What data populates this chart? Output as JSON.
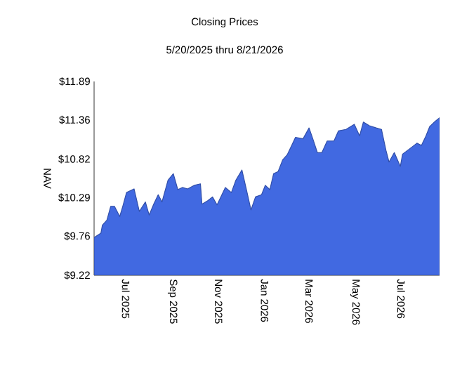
{
  "chart_data": {
    "type": "area",
    "title": "Closing Prices",
    "subtitle": "5/20/2025 thru 8/21/2026",
    "ylabel": "NAV",
    "x": [
      "2025-05-20",
      "2025-05-29",
      "2025-05-31",
      "2025-06-06",
      "2025-06-11",
      "2025-06-16",
      "2025-06-23",
      "2025-06-27",
      "2025-07-02",
      "2025-07-12",
      "2025-07-19",
      "2025-07-27",
      "2025-08-01",
      "2025-08-07",
      "2025-08-13",
      "2025-08-18",
      "2025-08-26",
      "2025-09-02",
      "2025-09-08",
      "2025-09-14",
      "2025-09-21",
      "2025-09-30",
      "2025-10-08",
      "2025-10-10",
      "2025-10-18",
      "2025-10-24",
      "2025-10-30",
      "2025-11-10",
      "2025-11-18",
      "2025-11-24",
      "2025-12-02",
      "2025-12-08",
      "2025-12-14",
      "2025-12-20",
      "2025-12-28",
      "2026-01-02",
      "2026-01-08",
      "2026-01-13",
      "2026-01-19",
      "2026-01-25",
      "2026-01-31",
      "2026-02-06",
      "2026-02-11",
      "2026-02-21",
      "2026-03-01",
      "2026-03-06",
      "2026-03-12",
      "2026-03-18",
      "2026-03-25",
      "2026-04-03",
      "2026-04-09",
      "2026-04-19",
      "2026-04-30",
      "2026-05-07",
      "2026-05-12",
      "2026-05-20",
      "2026-05-29",
      "2026-06-05",
      "2026-06-11",
      "2026-06-15",
      "2026-06-22",
      "2026-06-30",
      "2026-07-03",
      "2026-07-12",
      "2026-07-22",
      "2026-07-28",
      "2026-08-03",
      "2026-08-08",
      "2026-08-15",
      "2026-08-21"
    ],
    "series": [
      {
        "color": "#4169e1",
        "values": [
          9.74,
          9.8,
          9.91,
          9.98,
          10.17,
          10.17,
          10.03,
          10.17,
          10.36,
          10.41,
          10.1,
          10.23,
          10.05,
          10.2,
          10.33,
          10.23,
          10.53,
          10.62,
          10.4,
          10.43,
          10.41,
          10.46,
          10.48,
          10.2,
          10.25,
          10.3,
          10.19,
          10.43,
          10.36,
          10.53,
          10.67,
          10.4,
          10.12,
          10.3,
          10.33,
          10.46,
          10.4,
          10.62,
          10.65,
          10.81,
          10.88,
          11.01,
          11.12,
          11.1,
          11.25,
          11.1,
          10.91,
          10.91,
          11.07,
          11.07,
          11.21,
          11.23,
          11.3,
          11.14,
          11.33,
          11.28,
          11.25,
          11.23,
          10.94,
          10.78,
          10.91,
          10.72,
          10.89,
          10.96,
          11.04,
          11.01,
          11.14,
          11.27,
          11.34,
          11.39
        ]
      }
    ],
    "xlim": [
      "2025-05-20",
      "2026-08-21"
    ],
    "xticks": [
      {
        "value": "2025-07-01",
        "label": "Jul 2025"
      },
      {
        "value": "2025-09-01",
        "label": "Sep 2025"
      },
      {
        "value": "2025-11-01",
        "label": "Nov 2025"
      },
      {
        "value": "2026-01-01",
        "label": "Jan 2026"
      },
      {
        "value": "2026-03-01",
        "label": "Mar 2026"
      },
      {
        "value": "2026-05-01",
        "label": "May 2026"
      },
      {
        "value": "2026-07-01",
        "label": "Jul 2026"
      }
    ],
    "ylim": [
      9.22,
      11.89
    ],
    "yticks": [
      {
        "value": 9.22,
        "label": "$9.22"
      },
      {
        "value": 9.76,
        "label": "$9.76"
      },
      {
        "value": 10.29,
        "label": "$10.29"
      },
      {
        "value": 10.82,
        "label": "$10.82"
      },
      {
        "value": 11.36,
        "label": "$11.36"
      },
      {
        "value": 11.89,
        "label": "$11.89"
      }
    ],
    "line_style": "solid"
  }
}
